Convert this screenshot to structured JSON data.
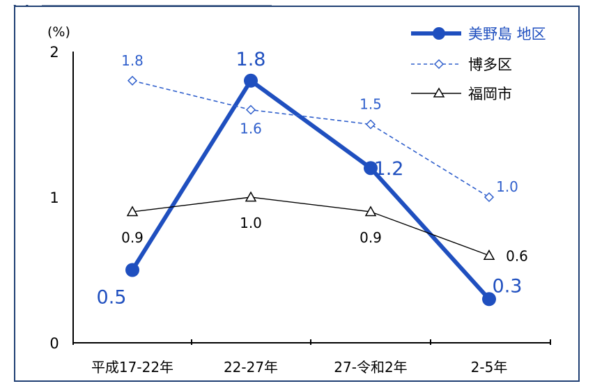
{
  "chart_data": {
    "type": "line",
    "title": "",
    "xlabel": "",
    "ylabel": "(%)",
    "ylim": [
      0,
      2
    ],
    "yticks": [
      "0",
      "1",
      "2"
    ],
    "categories": [
      "平成17-22年",
      "22-27年",
      "27-令和2年",
      "2-5年"
    ],
    "series": [
      {
        "name": "美野島 地区",
        "values": [
          0.5,
          1.8,
          1.2,
          0.3
        ],
        "value_labels": [
          "0.5",
          "1.8",
          "1.2",
          "0.3"
        ],
        "color": "#1f4fbf",
        "style": "solid-thick",
        "marker": "filled-circle"
      },
      {
        "name": "博多区",
        "values": [
          1.8,
          1.6,
          1.5,
          1.0
        ],
        "value_labels": [
          "1.8",
          "1.6",
          "1.5",
          "1.0"
        ],
        "color": "#2f5fcc",
        "style": "dashed",
        "marker": "hollow-diamond"
      },
      {
        "name": "福岡市",
        "values": [
          0.9,
          1.0,
          0.9,
          0.6
        ],
        "value_labels": [
          "0.9",
          "1.0",
          "0.9",
          "0.6"
        ],
        "color": "#000000",
        "style": "solid-thin",
        "marker": "hollow-triangle"
      }
    ],
    "legend": "top-right",
    "grid": false
  }
}
